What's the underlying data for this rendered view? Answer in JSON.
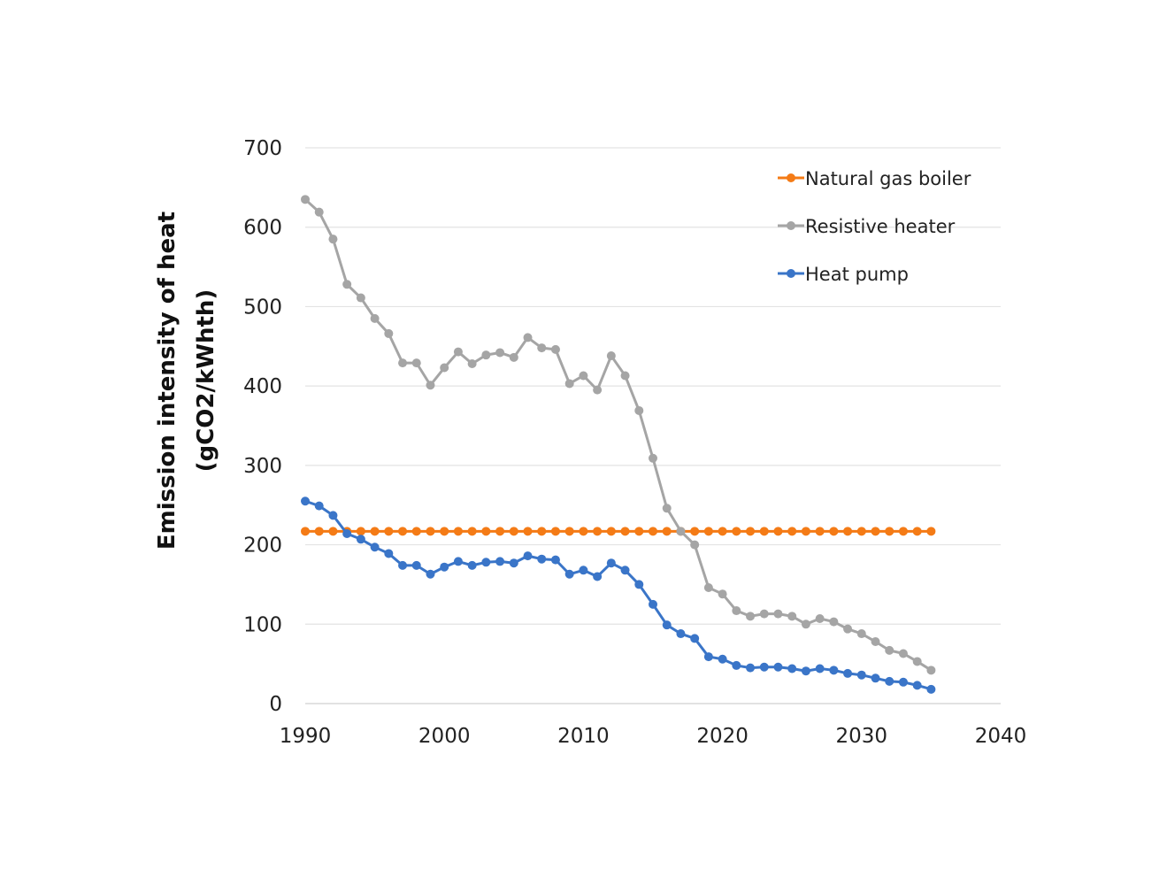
{
  "chart_data": {
    "type": "line",
    "title": "",
    "xlabel": "",
    "ylabel_line1": "Emission intensity of heat",
    "ylabel_line2": "(gCO2/kWhth)",
    "xlim": [
      1990,
      2040
    ],
    "ylim": [
      0,
      700
    ],
    "xticks": [
      1990,
      2000,
      2010,
      2020,
      2030,
      2040
    ],
    "yticks": [
      0,
      100,
      200,
      300,
      400,
      500,
      600,
      700
    ],
    "grid": "horizontal",
    "legend_position": "top-right",
    "x": [
      1990,
      1991,
      1992,
      1993,
      1994,
      1995,
      1996,
      1997,
      1998,
      1999,
      2000,
      2001,
      2002,
      2003,
      2004,
      2005,
      2006,
      2007,
      2008,
      2009,
      2010,
      2011,
      2012,
      2013,
      2014,
      2015,
      2016,
      2017,
      2018,
      2019,
      2020,
      2021,
      2022,
      2023,
      2024,
      2025,
      2026,
      2027,
      2028,
      2029,
      2030,
      2031,
      2032,
      2033,
      2034,
      2035
    ],
    "series": [
      {
        "name": "Natural gas boiler",
        "color": "#f47b16",
        "values": [
          217,
          217,
          217,
          217,
          217,
          217,
          217,
          217,
          217,
          217,
          217,
          217,
          217,
          217,
          217,
          217,
          217,
          217,
          217,
          217,
          217,
          217,
          217,
          217,
          217,
          217,
          217,
          217,
          217,
          217,
          217,
          217,
          217,
          217,
          217,
          217,
          217,
          217,
          217,
          217,
          217,
          217,
          217,
          217,
          217,
          217
        ]
      },
      {
        "name": "Resistive heater",
        "color": "#a5a5a5",
        "values": [
          635,
          619,
          585,
          528,
          511,
          485,
          466,
          429,
          429,
          401,
          423,
          443,
          428,
          439,
          442,
          436,
          461,
          448,
          446,
          403,
          413,
          395,
          438,
          413,
          369,
          309,
          246,
          217,
          200,
          146,
          138,
          117,
          110,
          113,
          113,
          110,
          100,
          107,
          103,
          94,
          88,
          78,
          67,
          63,
          53,
          42
        ]
      },
      {
        "name": "Heat pump",
        "color": "#3a75c8",
        "values": [
          255,
          249,
          237,
          214,
          207,
          197,
          189,
          174,
          174,
          163,
          172,
          179,
          174,
          178,
          179,
          177,
          186,
          182,
          181,
          163,
          168,
          160,
          177,
          168,
          150,
          125,
          99,
          88,
          82,
          59,
          56,
          48,
          45,
          46,
          46,
          44,
          41,
          44,
          42,
          38,
          36,
          32,
          28,
          27,
          23,
          18
        ]
      }
    ]
  }
}
